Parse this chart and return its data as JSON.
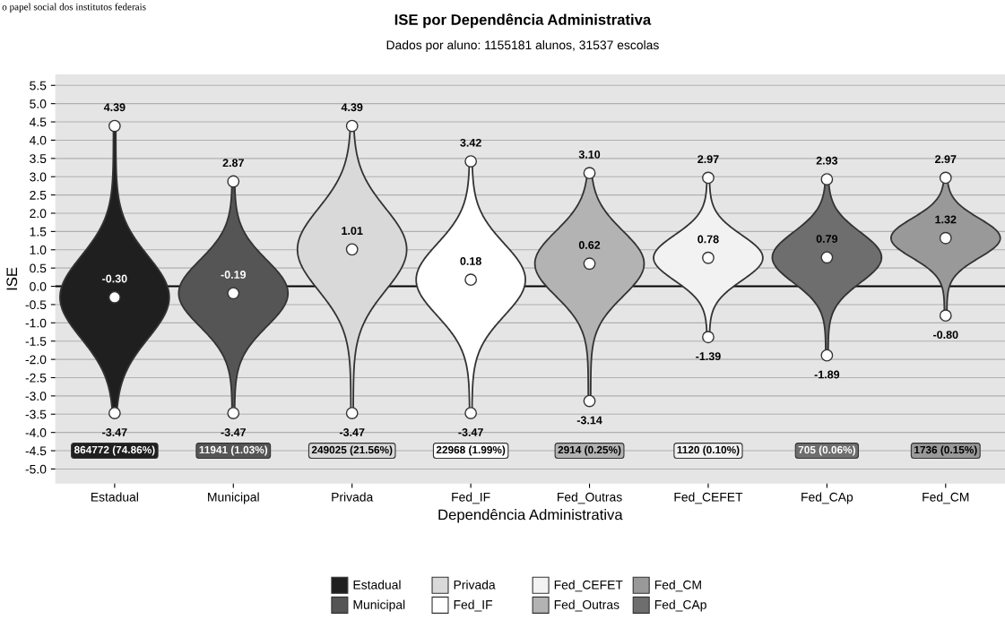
{
  "chart_data": {
    "type": "scatter",
    "title": "ISE por Dependência Administrativa",
    "subtitle": "Dados por aluno: 1155181 alunos, 31537 escolas",
    "xlabel": "Dependência Administrativa",
    "ylabel": "ISE",
    "categories": [
      "Estadual",
      "Municipal",
      "Privada",
      "Fed_IF",
      "Fed_Outras",
      "Fed_CEFET",
      "Fed_CAp",
      "Fed_CM"
    ],
    "colors": [
      "#1f1f1f",
      "#555555",
      "#d9d9d9",
      "#ffffff",
      "#b3b3b3",
      "#f2f2f2",
      "#6e6e6e",
      "#999999"
    ],
    "series": [
      {
        "color": "#ffffff",
        "values": [
          4.39,
          2.87,
          4.39,
          3.42,
          3.1,
          2.97,
          2.93,
          2.97
        ],
        "value_labels": [
          "4.39",
          "2.87",
          "4.39",
          "3.42",
          "3.10",
          "2.97",
          "2.93",
          "2.97"
        ]
      },
      {
        "color": "#ffffff",
        "values": [
          -0.3,
          -0.19,
          1.01,
          0.18,
          0.62,
          0.78,
          0.79,
          1.32
        ],
        "value_labels": [
          "-0.30",
          "-0.19",
          "1.01",
          "0.18",
          "0.62",
          "0.78",
          "0.79",
          "1.32"
        ]
      },
      {
        "color": "#ffffff",
        "values": [
          -3.47,
          -3.47,
          -3.47,
          -3.47,
          -3.14,
          -1.39,
          -1.89,
          -0.8
        ],
        "value_labels": [
          "-3.47",
          "-3.47",
          "-3.47",
          "-3.47",
          "-3.14",
          "-1.39",
          "-1.89",
          "-0.80"
        ]
      }
    ],
    "annotations": [
      "o papel social dos institutos federais",
      "864772 (74.86%)",
      "11941 (1.03%)",
      "249025 (21.56%)",
      "22968 (1.99%)",
      "2914 (0.25%)",
      "1120 (0.10%)",
      "705 (0.06%)",
      "1736 (0.15%)"
    ],
    "ylim": [
      -5.4,
      5.8
    ],
    "yticks": [
      {
        "value": -5,
        "label": "-5.0"
      },
      -4.5,
      {
        "value": -4,
        "label": "-4.0"
      },
      -3.5,
      {
        "value": -3,
        "label": "-3.0"
      },
      -2.5,
      {
        "value": -2,
        "label": "-2.0"
      },
      -1.5,
      {
        "value": -1,
        "label": "-1.0"
      },
      -0.5,
      {
        "value": 0,
        "label": "0.0"
      },
      0.5,
      {
        "value": 1,
        "label": "1.0"
      },
      1.5,
      {
        "value": 2,
        "label": "2.0"
      },
      2.5,
      {
        "value": 3,
        "label": "3.0"
      },
      3.5,
      {
        "value": 4,
        "label": "4.0"
      },
      4.5,
      {
        "value": 5,
        "label": "5.0"
      },
      5.5
    ],
    "ref_lines": [
      {
        "axis": "y",
        "value": 0,
        "color": "#000000"
      }
    ],
    "grid": "y",
    "marker": "circle"
  }
}
